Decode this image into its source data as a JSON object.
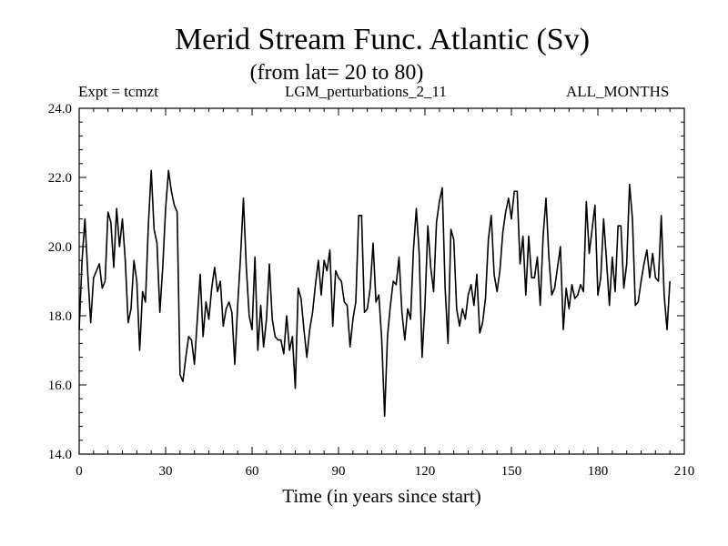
{
  "chart_data": {
    "type": "line",
    "title": "Merid Stream Func. Atlantic (Sv)",
    "subtitle": "(from lat= 20 to 80)",
    "header_left": "Expt = tcmzt",
    "header_center": "LGM_perturbations_2_11",
    "header_right": "ALL_MONTHS",
    "xlabel": "Time (in years since start)",
    "ylabel": "",
    "xlim": [
      0,
      210
    ],
    "ylim": [
      14.0,
      24.0
    ],
    "xticks": [
      0,
      30,
      60,
      90,
      120,
      150,
      180,
      210
    ],
    "xtick_labels": [
      "0",
      "30",
      "60",
      "90",
      "120",
      "150",
      "180",
      "210"
    ],
    "yticks": [
      14,
      16,
      18,
      20,
      22,
      24
    ],
    "ytick_labels": [
      "14.0",
      "16.0",
      "18.0",
      "20.0",
      "22.0",
      "24.0"
    ],
    "series": [
      {
        "name": "Merid Stream Func.",
        "x_start": 0,
        "x_step": 1,
        "values": [
          17.6,
          19.6,
          20.8,
          19.2,
          17.8,
          19.1,
          19.3,
          19.5,
          18.8,
          19.0,
          21.0,
          20.7,
          19.4,
          21.1,
          20.0,
          20.8,
          19.6,
          17.8,
          18.2,
          19.6,
          19.0,
          17.0,
          18.7,
          18.4,
          20.6,
          22.2,
          20.5,
          20.1,
          18.1,
          19.4,
          21.1,
          22.2,
          21.6,
          21.2,
          21.0,
          16.3,
          16.1,
          16.8,
          17.4,
          17.3,
          16.6,
          17.9,
          19.2,
          17.4,
          18.4,
          17.9,
          18.8,
          19.4,
          18.7,
          19.0,
          17.7,
          18.2,
          18.4,
          18.1,
          16.6,
          18.3,
          19.7,
          21.4,
          19.4,
          18.0,
          17.6,
          19.7,
          17.0,
          18.3,
          17.1,
          17.9,
          19.5,
          17.9,
          17.4,
          17.3,
          17.3,
          16.9,
          18.0,
          17.0,
          17.4,
          15.9,
          18.8,
          18.5,
          17.6,
          16.8,
          17.6,
          18.1,
          18.9,
          19.6,
          18.6,
          19.6,
          19.3,
          19.9,
          17.7,
          19.3,
          19.1,
          19.0,
          18.4,
          18.3,
          17.1,
          17.9,
          18.4,
          20.9,
          20.9,
          18.1,
          18.2,
          18.8,
          20.1,
          18.4,
          18.6,
          17.3,
          15.1,
          17.4,
          18.3,
          19.0,
          18.9,
          19.7,
          18.1,
          17.3,
          18.2,
          17.9,
          19.9,
          21.1,
          19.8,
          16.8,
          18.3,
          20.6,
          19.4,
          18.7,
          20.7,
          21.3,
          21.7,
          18.8,
          17.2,
          20.5,
          20.2,
          18.2,
          17.7,
          18.2,
          17.9,
          18.6,
          18.9,
          18.3,
          19.2,
          17.5,
          17.8,
          18.5,
          20.2,
          20.9,
          19.2,
          18.7,
          19.3,
          20.4,
          21.0,
          21.4,
          20.8,
          21.6,
          21.6,
          19.5,
          20.3,
          18.6,
          20.3,
          19.1,
          19.1,
          19.7,
          18.3,
          20.3,
          21.4,
          19.7,
          18.6,
          18.8,
          19.4,
          20.0,
          17.6,
          18.8,
          18.2,
          18.9,
          18.5,
          18.6,
          18.9,
          18.7,
          21.3,
          19.8,
          20.5,
          21.2,
          18.6,
          19.1,
          20.8,
          19.6,
          18.3,
          19.7,
          18.7,
          20.6,
          20.6,
          18.8,
          19.5,
          21.8,
          20.8,
          18.3,
          18.4,
          19.0,
          19.5,
          19.9,
          19.1,
          19.8,
          19.1,
          19.0,
          20.9,
          18.6,
          17.6,
          19.0
        ]
      }
    ]
  }
}
